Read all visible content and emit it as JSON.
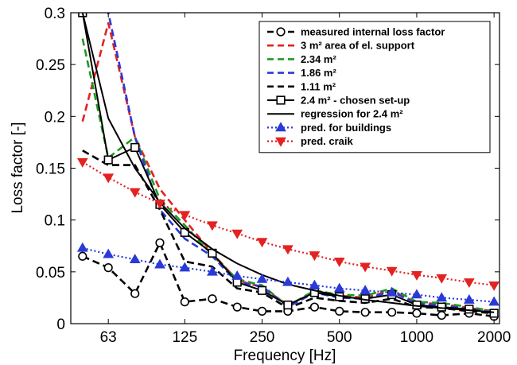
{
  "chart_data": {
    "type": "line",
    "xlabel": "Frequency [Hz]",
    "ylabel": "Loss factor [-]",
    "xscale": "log",
    "xlim": [
      45,
      2100
    ],
    "ylim": [
      0,
      0.3
    ],
    "xticks": [
      63,
      125,
      250,
      500,
      1000,
      2000
    ],
    "xtick_labels": [
      "63",
      "125",
      "250",
      "500",
      "1000",
      "2000"
    ],
    "yticks": [
      0,
      0.05,
      0.1,
      0.15,
      0.2,
      0.25,
      0.3
    ],
    "ytick_labels": [
      "0",
      "0.05",
      "0.1",
      "0.15",
      "0.2",
      "0.25",
      "0.3"
    ],
    "grid": false,
    "legend_position": "top-right",
    "x": [
      50,
      63,
      80,
      100,
      125,
      160,
      200,
      250,
      315,
      400,
      500,
      630,
      800,
      1000,
      1250,
      1600,
      2000
    ],
    "series": [
      {
        "name": "measured internal loss factor",
        "color": "#000000",
        "style": "dashed",
        "marker": "circle",
        "values": [
          0.065,
          0.054,
          0.029,
          0.078,
          0.021,
          0.024,
          0.016,
          0.012,
          0.012,
          0.016,
          0.012,
          0.011,
          0.011,
          0.01,
          0.008,
          0.01,
          0.007
        ]
      },
      {
        "name": "3 m² area of el. support",
        "color": "#e32222",
        "style": "dashed",
        "marker": "none",
        "values": [
          0.195,
          0.29,
          0.18,
          0.13,
          0.1,
          0.068,
          0.042,
          0.035,
          0.018,
          0.03,
          0.027,
          0.025,
          0.032,
          0.02,
          0.019,
          0.015,
          0.012
        ]
      },
      {
        "name": "2.34 m²",
        "color": "#1f9a1f",
        "style": "dashed",
        "marker": "none",
        "values": [
          0.275,
          0.16,
          0.18,
          0.12,
          0.095,
          0.066,
          0.043,
          0.037,
          0.017,
          0.032,
          0.028,
          0.027,
          0.034,
          0.021,
          0.02,
          0.016,
          0.012
        ]
      },
      {
        "name": "1.86 m²",
        "color": "#2a3ad6",
        "style": "dashed",
        "marker": "none",
        "values": [
          0.31,
          0.3,
          0.18,
          0.11,
          0.082,
          0.065,
          0.04,
          0.036,
          0.016,
          0.03,
          0.025,
          0.024,
          0.031,
          0.019,
          0.018,
          0.014,
          0.011
        ]
      },
      {
        "name": "1.11 m²",
        "color": "#000000",
        "style": "dashed",
        "marker": "none",
        "values": [
          0.167,
          0.153,
          0.153,
          0.11,
          0.06,
          0.055,
          0.034,
          0.03,
          0.015,
          0.025,
          0.022,
          0.02,
          0.024,
          0.016,
          0.015,
          0.012,
          0.01
        ]
      },
      {
        "name": "2.4 m² - chosen set-up",
        "color": "#000000",
        "style": "solid",
        "marker": "square",
        "values": [
          0.3,
          0.158,
          0.17,
          0.115,
          0.088,
          0.068,
          0.04,
          0.032,
          0.018,
          0.03,
          0.026,
          0.024,
          0.028,
          0.018,
          0.016,
          0.014,
          0.01
        ]
      },
      {
        "name": "regression for 2.4 m²",
        "color": "#000000",
        "style": "solid",
        "marker": "none",
        "values": [
          0.3,
          0.198,
          0.15,
          0.117,
          0.092,
          0.072,
          0.058,
          0.047,
          0.038,
          0.032,
          0.027,
          0.023,
          0.02,
          0.017,
          0.015,
          0.013,
          0.011
        ]
      },
      {
        "name": "pred. for buildings",
        "color": "#2a3ad6",
        "style": "dotted",
        "marker": "triangle-up",
        "values": [
          0.073,
          0.067,
          0.062,
          0.057,
          0.054,
          0.05,
          0.046,
          0.043,
          0.04,
          0.037,
          0.034,
          0.032,
          0.03,
          0.028,
          0.025,
          0.023,
          0.021
        ]
      },
      {
        "name": "pred. craik",
        "color": "#e32222",
        "style": "dotted",
        "marker": "triangle-down",
        "values": [
          0.156,
          0.141,
          0.127,
          0.116,
          0.105,
          0.095,
          0.087,
          0.079,
          0.072,
          0.066,
          0.06,
          0.055,
          0.051,
          0.047,
          0.044,
          0.04,
          0.037
        ]
      }
    ]
  }
}
